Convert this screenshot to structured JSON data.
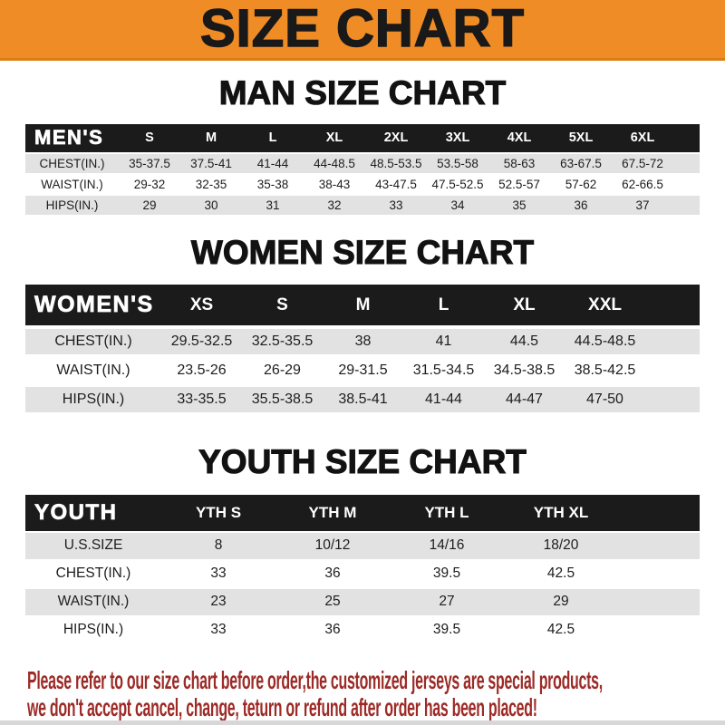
{
  "banner": {
    "title": "SIZE CHART"
  },
  "colors": {
    "banner_orange": "#ef8c25",
    "table_header_black": "#1b1b1b",
    "row_gray": "#e2e2e2",
    "footer_red": "#9c2b27"
  },
  "sections": [
    {
      "id": "men",
      "heading": "MAN SIZE CHART",
      "corner_label": "MEN'S",
      "columns": [
        "S",
        "M",
        "L",
        "XL",
        "2XL",
        "3XL",
        "4XL",
        "5XL",
        "6XL"
      ],
      "rows": [
        {
          "label": "CHEST(IN.)",
          "values": [
            "35-37.5",
            "37.5-41",
            "41-44",
            "44-48.5",
            "48.5-53.5",
            "53.5-58",
            "58-63",
            "63-67.5",
            "67.5-72"
          ]
        },
        {
          "label": "WAIST(IN.)",
          "values": [
            "29-32",
            "32-35",
            "35-38",
            "38-43",
            "43-47.5",
            "47.5-52.5",
            "52.5-57",
            "57-62",
            "62-66.5"
          ]
        },
        {
          "label": "HIPS(IN.)",
          "values": [
            "29",
            "30",
            "31",
            "32",
            "33",
            "34",
            "35",
            "36",
            "37"
          ]
        }
      ]
    },
    {
      "id": "women",
      "heading": "WOMEN SIZE CHART",
      "corner_label": "WOMEN'S",
      "columns": [
        "XS",
        "S",
        "M",
        "L",
        "XL",
        "XXL"
      ],
      "rows": [
        {
          "label": "CHEST(IN.)",
          "values": [
            "29.5-32.5",
            "32.5-35.5",
            "38",
            "41",
            "44.5",
            "44.5-48.5"
          ]
        },
        {
          "label": "WAIST(IN.)",
          "values": [
            "23.5-26",
            "26-29",
            "29-31.5",
            "31.5-34.5",
            "34.5-38.5",
            "38.5-42.5"
          ]
        },
        {
          "label": "HIPS(IN.)",
          "values": [
            "33-35.5",
            "35.5-38.5",
            "38.5-41",
            "41-44",
            "44-47",
            "47-50"
          ]
        }
      ]
    },
    {
      "id": "youth",
      "heading": "YOUTH SIZE CHART",
      "corner_label": "YOUTH",
      "columns": [
        "YTH S",
        "YTH M",
        "YTH L",
        "YTH XL"
      ],
      "rows": [
        {
          "label": "U.S.SIZE",
          "values": [
            "8",
            "10/12",
            "14/16",
            "18/20"
          ]
        },
        {
          "label": "CHEST(IN.)",
          "values": [
            "33",
            "36",
            "39.5",
            "42.5"
          ]
        },
        {
          "label": "WAIST(IN.)",
          "values": [
            "23",
            "25",
            "27",
            "29"
          ]
        },
        {
          "label": "HIPS(IN.)",
          "values": [
            "33",
            "36",
            "39.5",
            "42.5"
          ]
        }
      ]
    }
  ],
  "footer": {
    "line1": "Please refer to our size chart before order,the customized jerseys are special products,",
    "line2": "we don't accept cancel, change, teturn or refund after order has been placed!"
  }
}
